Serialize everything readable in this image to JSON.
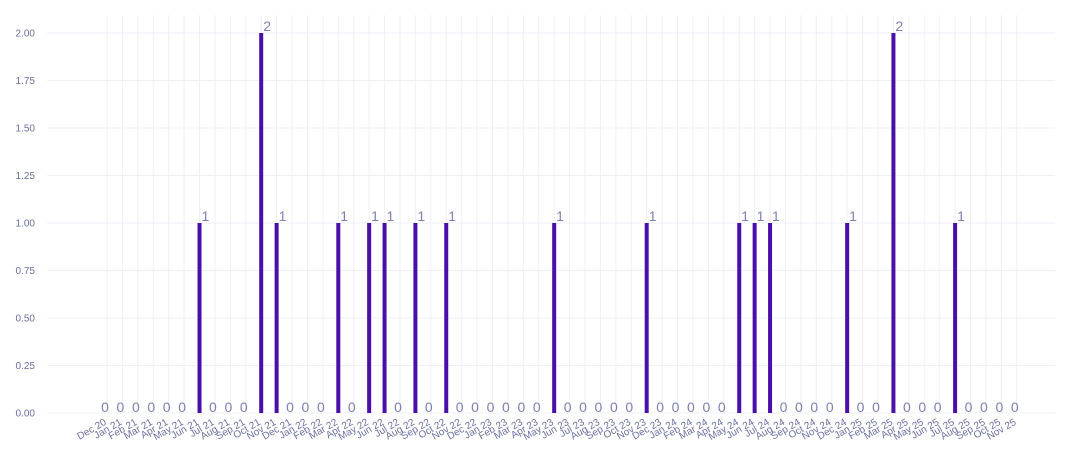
{
  "chart_data": {
    "type": "bar",
    "categories": [
      "Dec 20",
      "Jan 21",
      "Feb 21",
      "Mar 21",
      "Apr 21",
      "May 21",
      "Jun 21",
      "Jul 21",
      "Aug 21",
      "Sep 21",
      "Oct 21",
      "Nov 21",
      "Dec 21",
      "Jan 22",
      "Feb 22",
      "Mar 22",
      "Apr 22",
      "May 22",
      "Jun 22",
      "Jul 22",
      "Aug 22",
      "Sep 22",
      "Oct 22",
      "Nov 22",
      "Dec 22",
      "Jan 23",
      "Feb 23",
      "Mar 23",
      "Apr 23",
      "May 23",
      "Jun 23",
      "Jul 23",
      "Aug 23",
      "Sep 23",
      "Oct 23",
      "Nov 23",
      "Dec 23",
      "Jan 24",
      "Feb 24",
      "Mar 24",
      "Apr 24",
      "May 24",
      "Jun 24",
      "Jul 24",
      "Aug 24",
      "Sep 24",
      "Oct 24",
      "Nov 24",
      "Dec 24",
      "Jan 25",
      "Feb 25",
      "Mar 25",
      "Apr 25",
      "May 25",
      "Jun 25",
      "Jul 25",
      "Aug 25",
      "Sep 25",
      "Oct 25",
      "Nov 25"
    ],
    "values": [
      0,
      0,
      0,
      0,
      0,
      0,
      1,
      0,
      0,
      0,
      2,
      1,
      0,
      0,
      0,
      1,
      0,
      1,
      1,
      0,
      1,
      0,
      1,
      0,
      0,
      0,
      0,
      0,
      0,
      1,
      0,
      0,
      0,
      0,
      0,
      1,
      0,
      0,
      0,
      0,
      0,
      1,
      1,
      1,
      0,
      0,
      0,
      0,
      1,
      0,
      0,
      2,
      0,
      0,
      0,
      1,
      0,
      0,
      0,
      0
    ],
    "y_ticks": [
      "0.00",
      "0.25",
      "0.50",
      "0.75",
      "1.00",
      "1.25",
      "1.50",
      "1.75",
      "2.00"
    ],
    "ylim": [
      0,
      2.1
    ],
    "grid": true,
    "bar_color": "#4a0fa8",
    "grid_color": "#eef0f8",
    "label_color": "#7c80b3"
  }
}
